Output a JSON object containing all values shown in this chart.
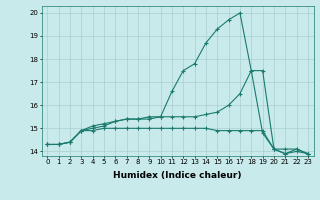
{
  "x": [
    0,
    1,
    2,
    3,
    4,
    5,
    6,
    7,
    8,
    9,
    10,
    11,
    12,
    13,
    14,
    15,
    16,
    17,
    18,
    19,
    20,
    21,
    22,
    23
  ],
  "line1": [
    14.3,
    14.3,
    14.4,
    14.9,
    15.1,
    15.2,
    15.3,
    15.4,
    15.4,
    15.4,
    15.5,
    16.6,
    17.5,
    17.8,
    18.7,
    19.3,
    19.7,
    20.0,
    17.5,
    14.8,
    14.1,
    14.1,
    14.1,
    13.9
  ],
  "line2": [
    14.3,
    14.3,
    14.4,
    14.9,
    15.0,
    15.1,
    15.3,
    15.4,
    15.4,
    15.5,
    15.5,
    15.5,
    15.5,
    15.5,
    15.6,
    15.7,
    16.0,
    16.5,
    17.5,
    17.5,
    14.1,
    13.9,
    14.1,
    13.9
  ],
  "line3": [
    14.3,
    14.3,
    14.4,
    14.9,
    14.9,
    15.0,
    15.0,
    15.0,
    15.0,
    15.0,
    15.0,
    15.0,
    15.0,
    15.0,
    15.0,
    14.9,
    14.9,
    14.9,
    14.9,
    14.9,
    14.1,
    13.9,
    14.0,
    13.9
  ],
  "color": "#1a7a6e",
  "bg_color": "#c8eaea",
  "grid_color": "#aad0d0",
  "xlabel": "Humidex (Indice chaleur)",
  "ylabel_ticks": [
    14,
    15,
    16,
    17,
    18,
    19,
    20
  ],
  "xlim": [
    -0.5,
    23.5
  ],
  "ylim": [
    13.8,
    20.3
  ],
  "xtick_labels": [
    "0",
    "1",
    "2",
    "3",
    "4",
    "5",
    "6",
    "7",
    "8",
    "9",
    "10",
    "11",
    "12",
    "13",
    "14",
    "15",
    "16",
    "17",
    "18",
    "19",
    "20",
    "21",
    "22",
    "23"
  ],
  "marker": "+",
  "linewidth": 0.8,
  "markersize": 3,
  "tick_fontsize": 5.0,
  "xlabel_fontsize": 6.5
}
